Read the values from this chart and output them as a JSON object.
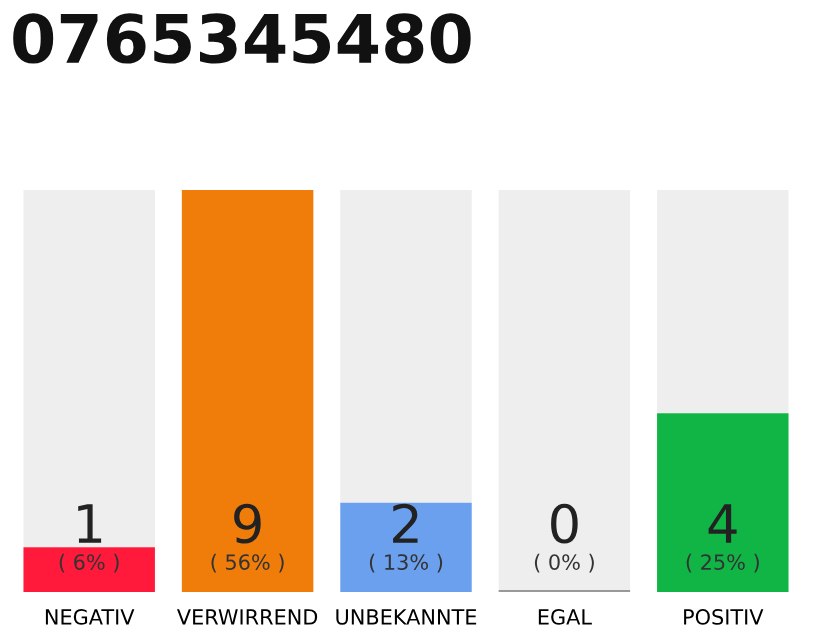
{
  "chart_data": {
    "type": "bar",
    "title": "0765345480",
    "stacked": true,
    "categories": [
      "NEGATIV",
      "VERWIRREND",
      "UNBEKANNTE",
      "EGAL",
      "POSITIV"
    ],
    "series": [
      {
        "colors": [
          "#ff1a3c",
          "#f07d0a",
          "#6aa0ee",
          "#999999",
          "#10b546"
        ],
        "values": [
          1,
          9,
          2,
          0,
          4
        ],
        "value_labels": [
          "1",
          "9",
          "2",
          "0",
          "4"
        ]
      },
      {
        "color": "#eeeeee",
        "values": [
          8,
          0,
          7,
          9,
          5
        ]
      }
    ],
    "annotations": [
      "( 6% )",
      "( 56% )",
      "( 13% )",
      "( 0% )",
      "( 25% )"
    ],
    "tick_labels": "x",
    "grid": false
  }
}
